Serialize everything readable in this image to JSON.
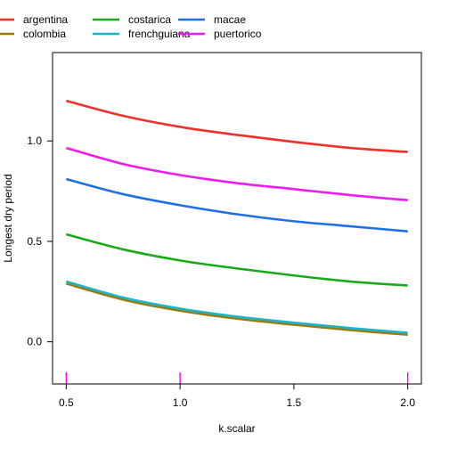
{
  "chart_data": {
    "type": "line",
    "xlabel": "k.scalar",
    "ylabel": "Longest dry period",
    "xlim": [
      0.44,
      2.06
    ],
    "ylim": [
      -0.21,
      1.44
    ],
    "x_ticks": [
      "0.5",
      "1.0",
      "1.5",
      "2.0"
    ],
    "x_tick_values": [
      0.5,
      1.0,
      1.5,
      2.0
    ],
    "y_ticks": [
      "0.0",
      "0.5",
      "1.0"
    ],
    "y_tick_values": [
      0.0,
      0.5,
      1.0
    ],
    "rug_x": [
      0.5,
      1.0,
      2.0
    ],
    "rug_color": "#FF00FF",
    "x": [
      0.5,
      0.75,
      1.0,
      1.25,
      1.5,
      1.75,
      2.0
    ],
    "series": [
      {
        "name": "argentina",
        "color": "#F0302A",
        "values": [
          1.2,
          1.125,
          1.07,
          1.03,
          0.995,
          0.965,
          0.945
        ]
      },
      {
        "name": "colombia",
        "color": "#9A7B0A",
        "values": [
          0.29,
          0.21,
          0.155,
          0.115,
          0.085,
          0.058,
          0.035
        ]
      },
      {
        "name": "costarica",
        "color": "#19AA19",
        "values": [
          0.535,
          0.46,
          0.405,
          0.365,
          0.33,
          0.3,
          0.28
        ]
      },
      {
        "name": "frenchguiana",
        "color": "#1EB4C8",
        "values": [
          0.3,
          0.22,
          0.165,
          0.125,
          0.095,
          0.068,
          0.045
        ]
      },
      {
        "name": "macae",
        "color": "#1F6FE6",
        "values": [
          0.81,
          0.735,
          0.68,
          0.635,
          0.6,
          0.575,
          0.55
        ]
      },
      {
        "name": "puertorico",
        "color": "#F019F0",
        "values": [
          0.965,
          0.885,
          0.83,
          0.79,
          0.76,
          0.73,
          0.705
        ]
      }
    ],
    "legend": {
      "placement": "top",
      "columns": [
        [
          "argentina",
          "colombia"
        ],
        [
          "costarica",
          "frenchguiana"
        ],
        [
          "macae",
          "puertorico"
        ]
      ]
    },
    "grid": false
  }
}
